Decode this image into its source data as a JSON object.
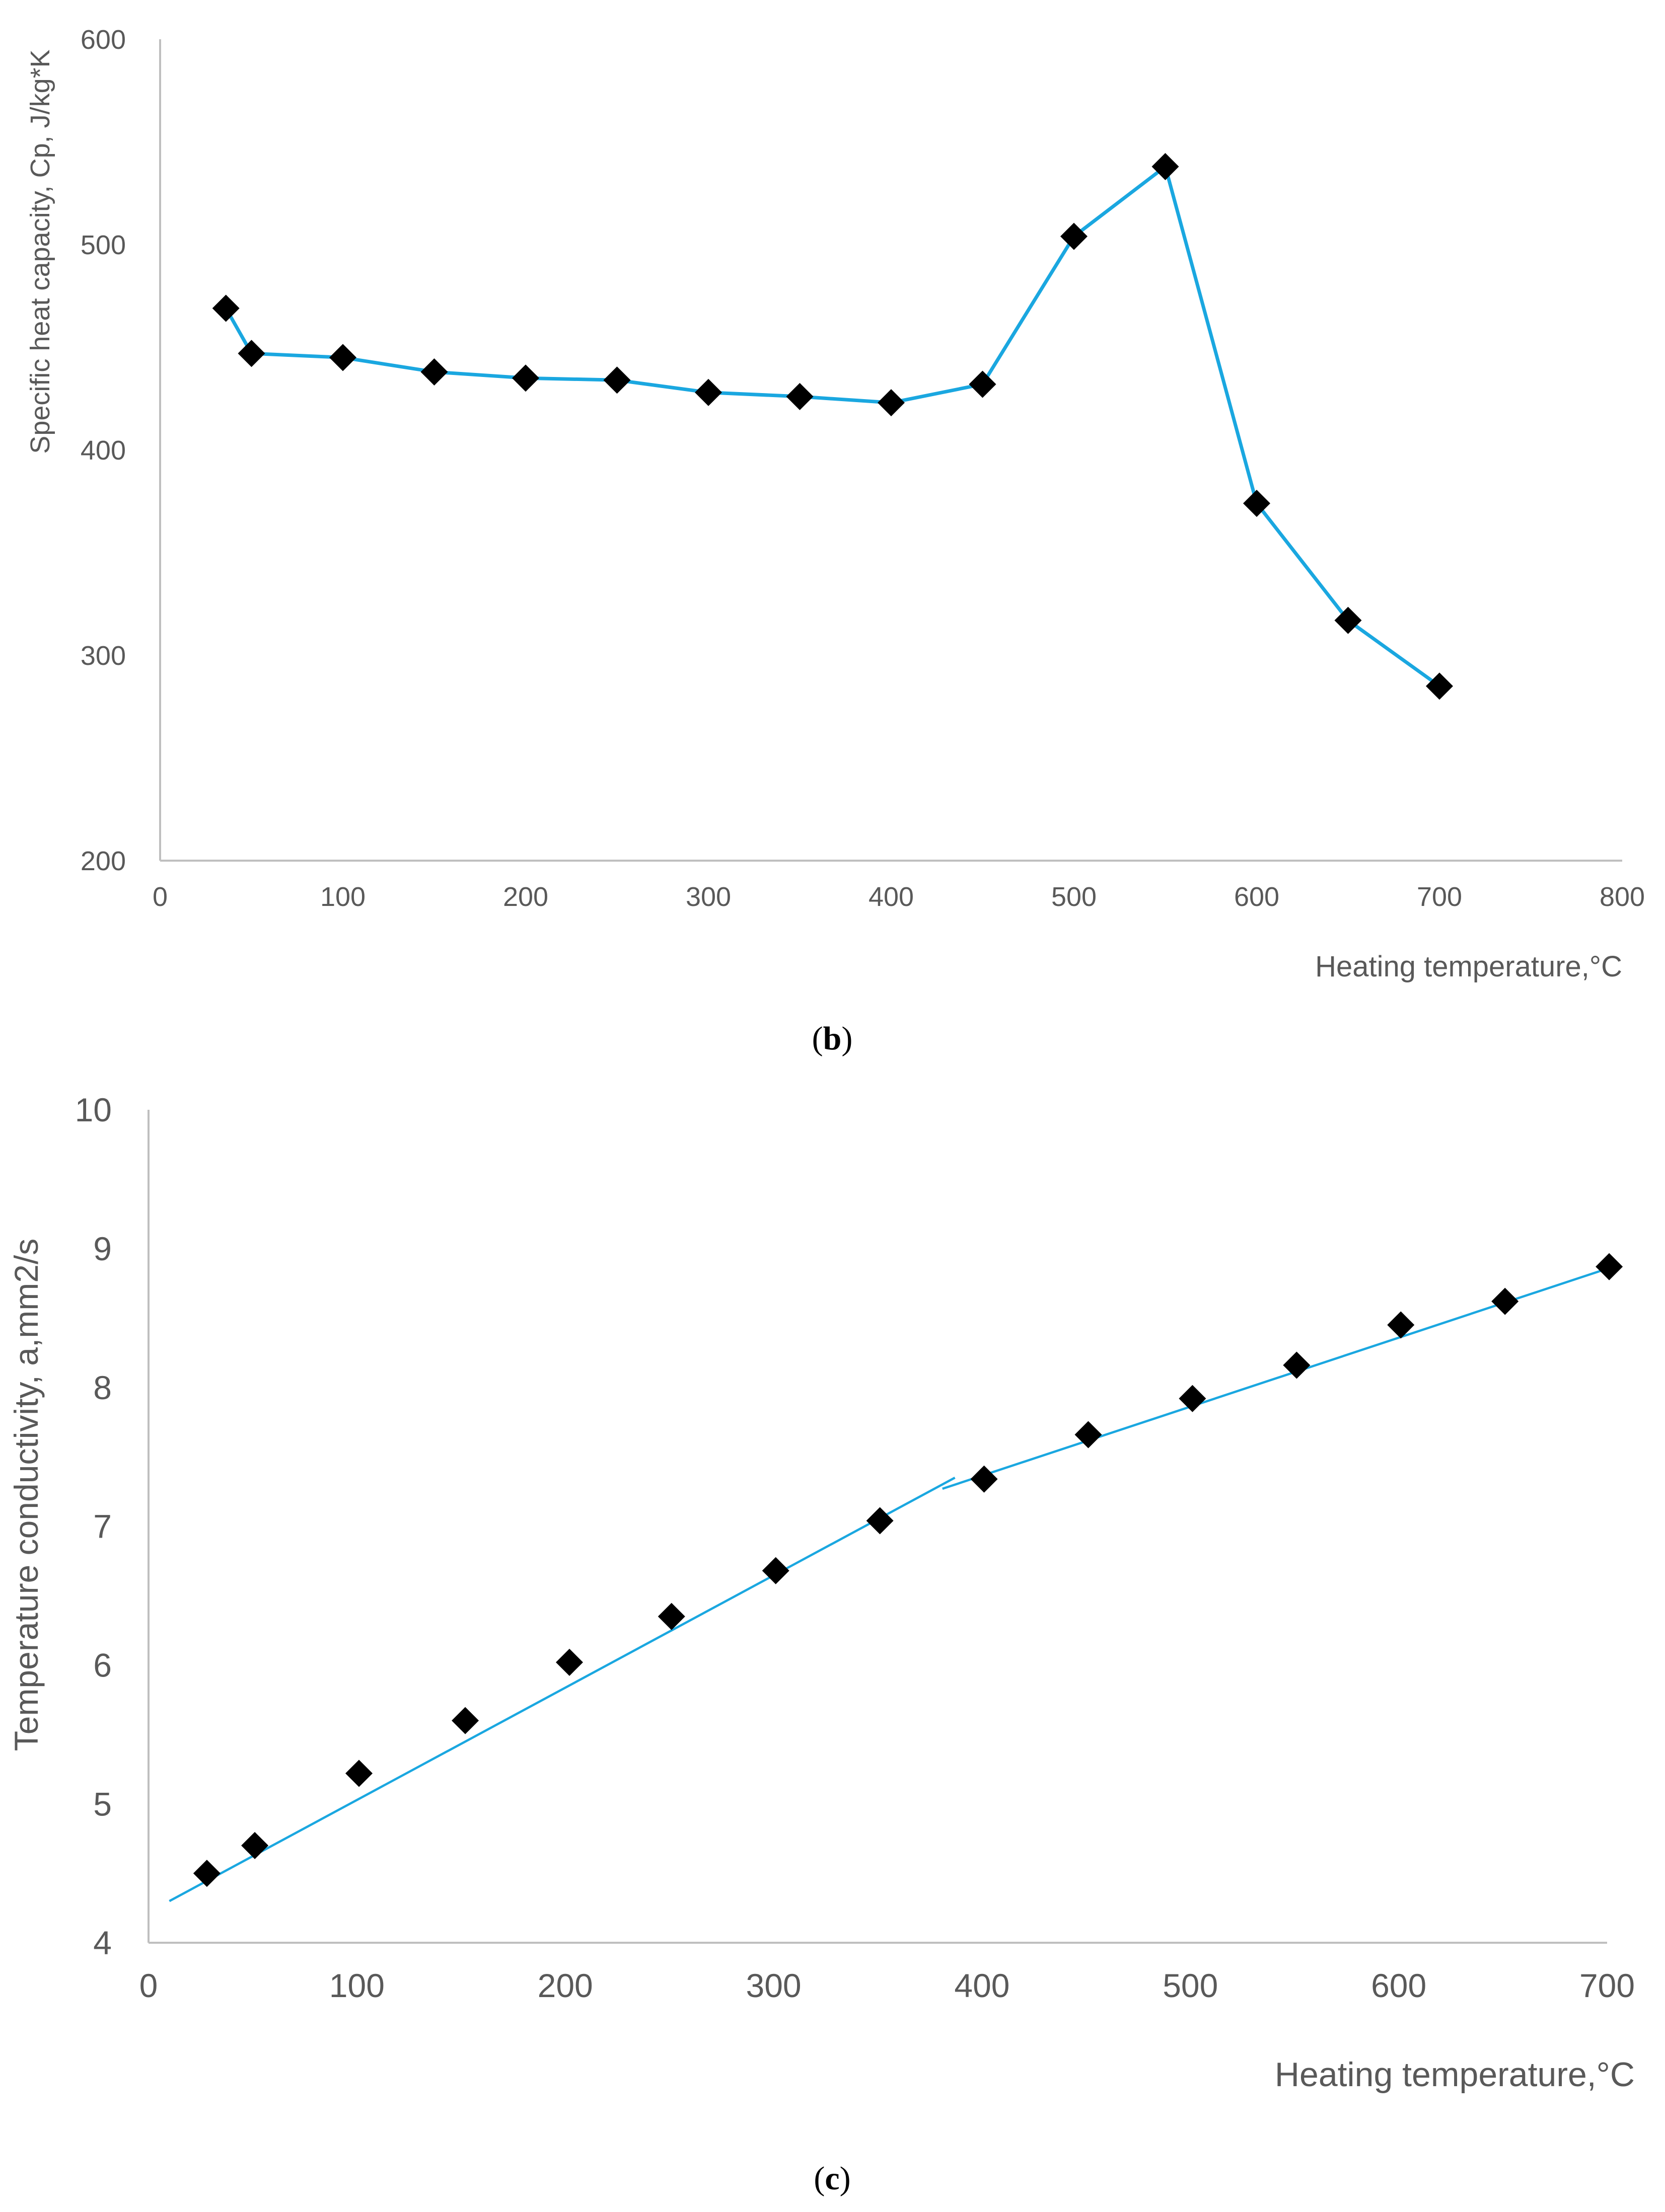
{
  "colors": {
    "line": "#1aa7e0",
    "marker": "#000000",
    "axis": "#bfbfbf",
    "text": "#595959"
  },
  "chart_data": [
    {
      "type": "line",
      "panel": "b",
      "panel_label": "b",
      "title": "",
      "xlabel": "Heating temperature,°C",
      "ylabel": "Specific heat capacity, Cp, J/kg*K",
      "xlim": [
        0,
        800
      ],
      "ylim": [
        200,
        600
      ],
      "xticks": [
        0,
        100,
        200,
        300,
        400,
        500,
        600,
        700,
        800
      ],
      "yticks": [
        200,
        300,
        400,
        500,
        600
      ],
      "marker": "diamond",
      "series": [
        {
          "name": "Cp",
          "x": [
            36,
            50,
            100,
            150,
            200,
            250,
            300,
            350,
            400,
            450,
            500,
            550,
            600,
            650,
            700
          ],
          "y": [
            469,
            447,
            445,
            438,
            435,
            434,
            428,
            426,
            423,
            432,
            504,
            538,
            374,
            317,
            285
          ]
        }
      ]
    },
    {
      "type": "scatter",
      "panel": "c",
      "panel_label": "c",
      "title": "",
      "xlabel": "Heating temperature,°C",
      "ylabel": "Temperature conductivity, a,mm2/s",
      "xlim": [
        0,
        700
      ],
      "ylim": [
        4,
        10
      ],
      "xticks": [
        0,
        100,
        200,
        300,
        400,
        500,
        600,
        700
      ],
      "yticks": [
        4,
        5,
        6,
        7,
        8,
        9,
        10
      ],
      "marker": "diamond",
      "series": [
        {
          "name": "a",
          "x": [
            28,
            51,
            101,
            152,
            202,
            251,
            301,
            351,
            401,
            451,
            501,
            551,
            601,
            651,
            701
          ],
          "y": [
            4.5,
            4.7,
            5.22,
            5.6,
            6.02,
            6.35,
            6.68,
            7.04,
            7.34,
            7.66,
            7.92,
            8.16,
            8.45,
            8.62,
            8.87
          ]
        }
      ],
      "trend_lines": [
        {
          "x": [
            10,
            387
          ],
          "y": [
            4.3,
            7.35
          ]
        },
        {
          "x": [
            381,
            705
          ],
          "y": [
            7.27,
            8.88
          ]
        }
      ]
    }
  ]
}
